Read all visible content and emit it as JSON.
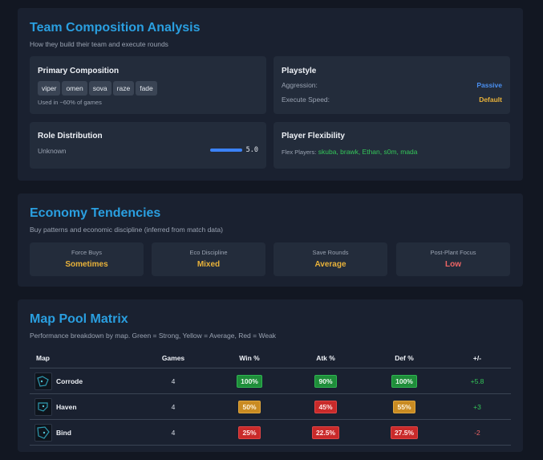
{
  "team_comp": {
    "title": "Team Composition Analysis",
    "subtitle": "How they build their team and execute rounds",
    "primary": {
      "title": "Primary Composition",
      "agents": [
        "viper",
        "omen",
        "sova",
        "raze",
        "fade"
      ],
      "usage": "Used in ~60% of games"
    },
    "playstyle": {
      "title": "Playstyle",
      "aggression_label": "Aggression:",
      "aggression_value": "Passive",
      "execute_label": "Execute Speed:",
      "execute_value": "Default",
      "colors": {
        "aggression": "#4a8ff0",
        "execute": "#e8b23a"
      }
    },
    "roles": {
      "title": "Role Distribution",
      "role": "Unknown",
      "value": "5.0",
      "bar_fill": 1.0,
      "bar_color": "#3b82f6"
    },
    "flex": {
      "title": "Player Flexibility",
      "label": "Flex Players:",
      "players": "skuba, brawk, Ethan, s0m, mada",
      "color": "#34c759"
    }
  },
  "economy": {
    "title": "Economy Tendencies",
    "subtitle": "Buy patterns and economic discipline (inferred from match data)",
    "cards": [
      {
        "label": "Force Buys",
        "value": "Sometimes",
        "color": "#e8b23a"
      },
      {
        "label": "Eco Discipline",
        "value": "Mixed",
        "color": "#e8b23a"
      },
      {
        "label": "Save Rounds",
        "value": "Average",
        "color": "#e8b23a"
      },
      {
        "label": "Post-Plant Focus",
        "value": "Low",
        "color": "#f06565"
      }
    ]
  },
  "map_pool": {
    "title": "Map Pool Matrix",
    "subtitle": "Performance breakdown by map. Green = Strong, Yellow = Average, Red = Weak",
    "headers": [
      "Map",
      "Games",
      "Win %",
      "Atk %",
      "Def %",
      "+/-"
    ],
    "rows": [
      {
        "map": "Corrode",
        "games": "4",
        "win": "100%",
        "win_level": "g",
        "atk": "90%",
        "atk_level": "g",
        "def": "100%",
        "def_level": "g",
        "pm": "+5.8",
        "pm_color": "#34c759"
      },
      {
        "map": "Haven",
        "games": "4",
        "win": "50%",
        "win_level": "y",
        "atk": "45%",
        "atk_level": "r",
        "def": "55%",
        "def_level": "y",
        "pm": "+3",
        "pm_color": "#34c759"
      },
      {
        "map": "Bind",
        "games": "4",
        "win": "25%",
        "win_level": "r",
        "atk": "22.5%",
        "atk_level": "r",
        "def": "27.5%",
        "def_level": "r",
        "pm": "-2",
        "pm_color": "#f06565"
      }
    ]
  }
}
